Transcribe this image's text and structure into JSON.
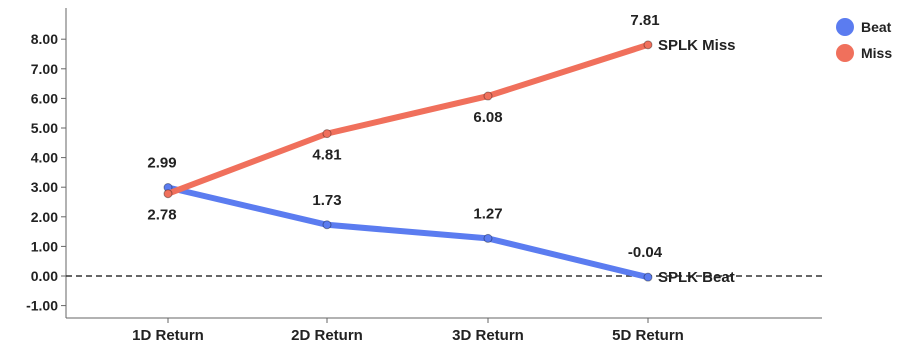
{
  "chart_data": {
    "type": "line",
    "categories": [
      "1D Return",
      "2D Return",
      "3D Return",
      "5D Return"
    ],
    "series": [
      {
        "name": "Beat",
        "values": [
          2.99,
          1.73,
          1.27,
          -0.04
        ],
        "color": "#5b7cf0",
        "end_label": "SPLK Beat"
      },
      {
        "name": "Miss",
        "values": [
          2.78,
          4.81,
          6.08,
          7.81
        ],
        "color": "#f0705c",
        "end_label": "SPLK Miss"
      }
    ],
    "y_ticks": [
      "-1.00",
      "0.00",
      "1.00",
      "2.00",
      "3.00",
      "4.00",
      "5.00",
      "6.00",
      "7.00",
      "8.00"
    ],
    "ylim": [
      -1.5,
      9.2
    ],
    "zero_line": "dashed",
    "legend_position": "top-right",
    "data_labels": {
      "Beat": [
        "2.99",
        "1.73",
        "1.27",
        "-0.04"
      ],
      "Miss": [
        "2.78",
        "4.81",
        "6.08",
        "7.81"
      ]
    }
  }
}
